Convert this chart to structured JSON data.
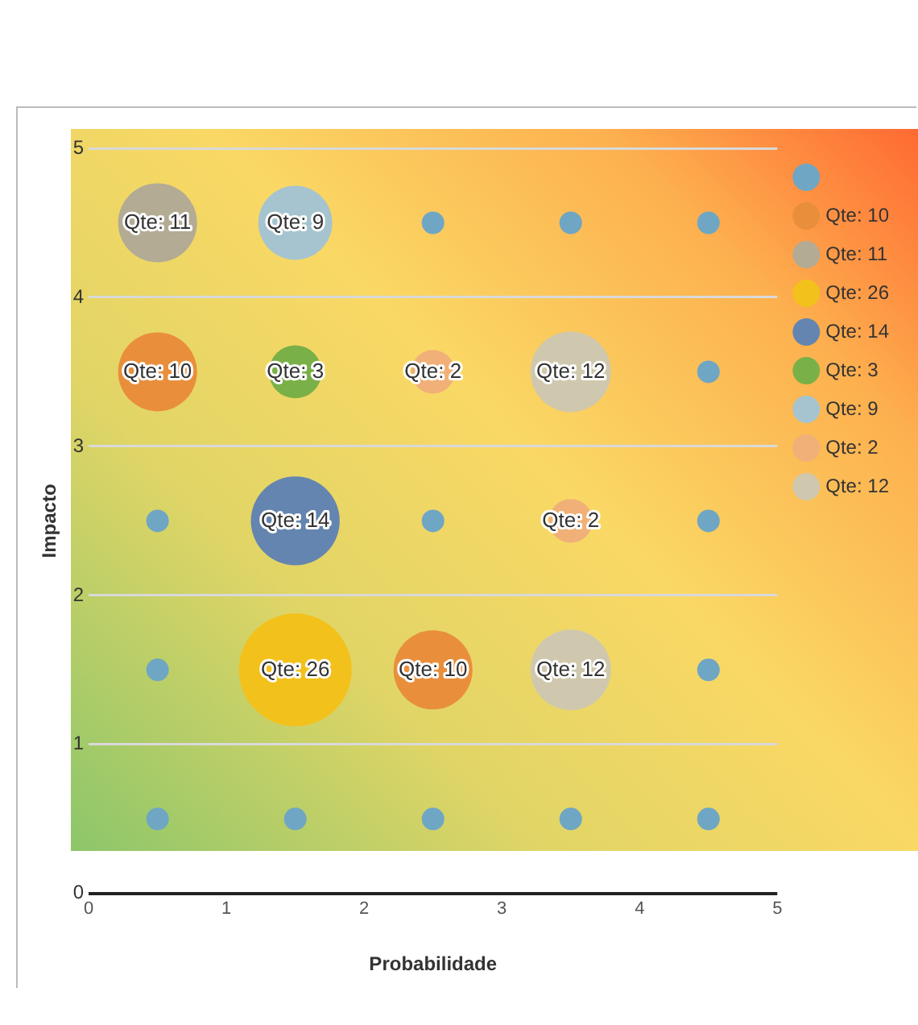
{
  "chart_data": {
    "type": "bubble",
    "xlabel": "Probabilidade",
    "ylabel": "Impacto",
    "xlim": [
      0,
      5
    ],
    "xticks": [
      0,
      1,
      2,
      3,
      4,
      5
    ],
    "ylim": [
      0,
      5
    ],
    "yticks": [
      0,
      1,
      2,
      3,
      4,
      5
    ],
    "grid": "y",
    "legend": "right",
    "series": [
      {
        "color": "#6fa6c4",
        "x": [
          2.5,
          3.5,
          4.5,
          4.5,
          0.5,
          2.5,
          4.5,
          0.5,
          4.5,
          0.5,
          1.5,
          2.5,
          3.5,
          4.5
        ],
        "values": [
          4.5,
          4.5,
          4.5,
          3.5,
          2.5,
          2.5,
          2.5,
          1.5,
          1.5,
          0.5,
          0.5,
          0.5,
          0.5,
          0.5
        ],
        "sizes": [
          0.04,
          0.04,
          0.04,
          0.04,
          0.04,
          0.04,
          0.04,
          0.04,
          0.04,
          0.04,
          0.04,
          0.04,
          0.04,
          0.04
        ]
      },
      {
        "name": "Qte: 10",
        "color": "#e98f3c",
        "x": [
          0.5,
          2.5
        ],
        "values": [
          3.5,
          1.5
        ],
        "sizes": [
          0.49,
          0.49
        ]
      },
      {
        "name": "Qte: 11",
        "color": "#b3ab94",
        "x": [
          0.5
        ],
        "values": [
          4.5
        ],
        "sizes": [
          0.49
        ]
      },
      {
        "name": "Qte: 26",
        "color": "#f3c11b",
        "x": [
          1.5
        ],
        "values": [
          1.5
        ],
        "sizes": [
          1
        ]
      },
      {
        "name": "Qte: 14",
        "color": "#6485b0",
        "x": [
          1.5
        ],
        "values": [
          2.5
        ],
        "sizes": [
          0.62
        ]
      },
      {
        "name": "Qte: 3",
        "color": "#7ab048",
        "x": [
          1.5
        ],
        "values": [
          3.5
        ],
        "sizes": [
          0.22
        ]
      },
      {
        "name": "Qte: 9",
        "color": "#a5c4cf",
        "x": [
          1.5
        ],
        "values": [
          4.5
        ],
        "sizes": [
          0.43
        ]
      },
      {
        "name": "Qte: 2",
        "color": "#f0b078",
        "x": [
          2.5,
          3.5
        ],
        "values": [
          3.5,
          2.5
        ],
        "sizes": [
          0.15,
          0.15
        ]
      },
      {
        "name": "Qte: 12",
        "color": "#cfc8ae",
        "x": [
          3.5,
          3.5
        ],
        "values": [
          3.5,
          1.5
        ],
        "sizes": [
          0.51,
          0.51
        ]
      }
    ]
  }
}
